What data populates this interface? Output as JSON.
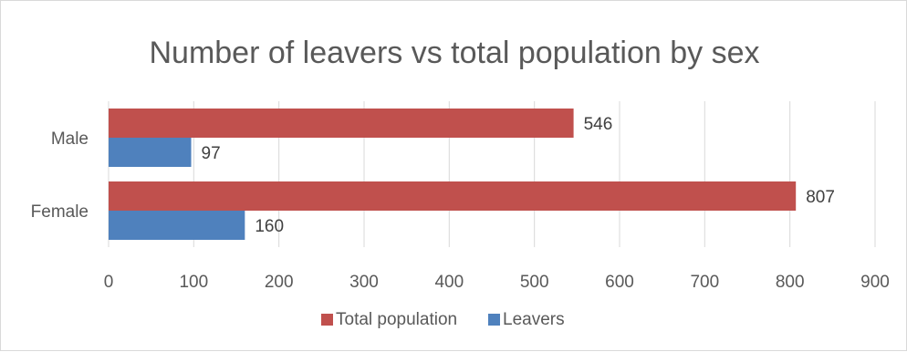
{
  "chart_data": {
    "type": "bar",
    "orientation": "horizontal",
    "title": "Number of leavers vs total population by sex",
    "categories": [
      "Male",
      "Female"
    ],
    "series": [
      {
        "name": "Total population",
        "values": [
          546,
          807
        ],
        "color": "#c0504d"
      },
      {
        "name": "Leavers",
        "values": [
          97,
          160
        ],
        "color": "#4f81bd"
      }
    ],
    "x_ticks": [
      "0",
      "100",
      "200",
      "300",
      "400",
      "500",
      "600",
      "700",
      "800",
      "900"
    ],
    "xlim": [
      0,
      900
    ],
    "grid": true,
    "legend_position": "bottom"
  }
}
